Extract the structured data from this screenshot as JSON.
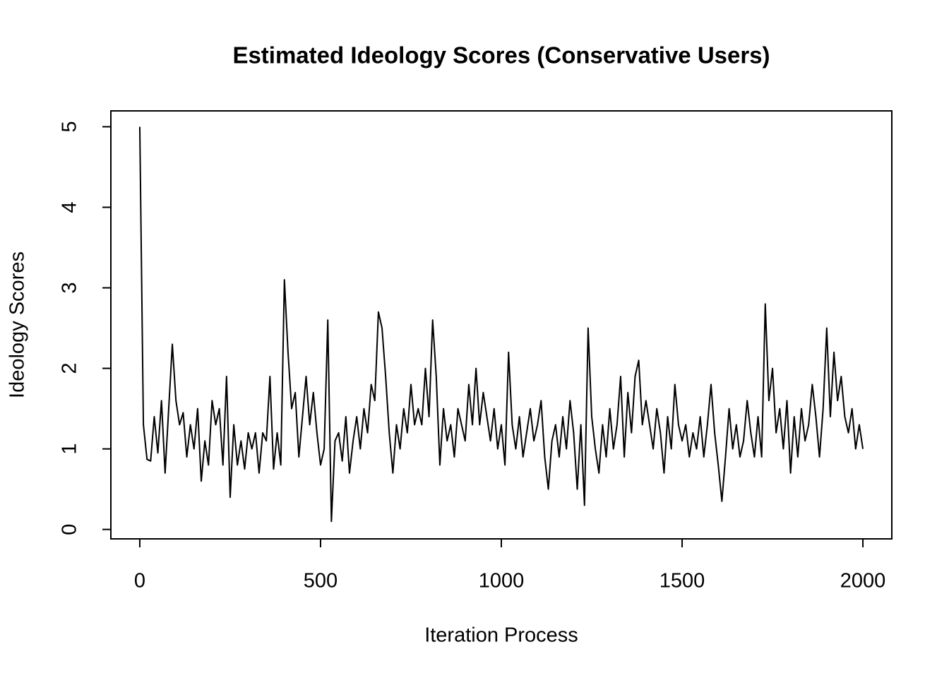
{
  "chart_data": {
    "type": "line",
    "title": "Estimated Ideology Scores (Conservative Users)",
    "x_label": "Iteration Process",
    "y_label": "Ideology Scores",
    "xlim": [
      -80,
      2080
    ],
    "ylim": [
      -0.117,
      5.197
    ],
    "xticks": [
      0,
      500,
      1000,
      1500,
      2000
    ],
    "yticks": [
      0,
      1,
      2,
      3,
      4,
      5
    ],
    "grid": false,
    "series": [
      {
        "color": "#000000",
        "x": [
          0,
          10,
          20,
          30,
          40,
          50,
          60,
          70,
          80,
          90,
          100,
          110,
          120,
          130,
          140,
          150,
          160,
          170,
          180,
          190,
          200,
          210,
          220,
          230,
          240,
          250,
          260,
          270,
          280,
          290,
          300,
          310,
          320,
          330,
          340,
          350,
          360,
          370,
          380,
          390,
          400,
          410,
          420,
          430,
          440,
          450,
          460,
          470,
          480,
          490,
          500,
          510,
          520,
          530,
          540,
          550,
          560,
          570,
          580,
          590,
          600,
          610,
          620,
          630,
          640,
          650,
          660,
          670,
          680,
          690,
          700,
          710,
          720,
          730,
          740,
          750,
          760,
          770,
          780,
          790,
          800,
          810,
          820,
          830,
          840,
          850,
          860,
          870,
          880,
          890,
          900,
          910,
          920,
          930,
          940,
          950,
          960,
          970,
          980,
          990,
          1000,
          1010,
          1020,
          1030,
          1040,
          1050,
          1060,
          1070,
          1080,
          1090,
          1100,
          1110,
          1120,
          1130,
          1140,
          1150,
          1160,
          1170,
          1180,
          1190,
          1200,
          1210,
          1220,
          1230,
          1240,
          1250,
          1260,
          1270,
          1280,
          1290,
          1300,
          1310,
          1320,
          1330,
          1340,
          1350,
          1360,
          1370,
          1380,
          1390,
          1400,
          1410,
          1420,
          1430,
          1440,
          1450,
          1460,
          1470,
          1480,
          1490,
          1500,
          1510,
          1520,
          1530,
          1540,
          1550,
          1560,
          1570,
          1580,
          1590,
          1600,
          1610,
          1620,
          1630,
          1640,
          1650,
          1660,
          1670,
          1680,
          1690,
          1700,
          1710,
          1720,
          1730,
          1740,
          1750,
          1760,
          1770,
          1780,
          1790,
          1800,
          1810,
          1820,
          1830,
          1840,
          1850,
          1860,
          1870,
          1880,
          1890,
          1900,
          1910,
          1920,
          1930,
          1940,
          1950,
          1960,
          1970,
          1980,
          1990,
          2000
        ],
        "values": [
          5.0,
          1.3,
          0.87,
          0.85,
          1.4,
          0.95,
          1.6,
          0.7,
          1.5,
          2.3,
          1.6,
          1.3,
          1.45,
          0.9,
          1.3,
          1.0,
          1.5,
          0.6,
          1.1,
          0.8,
          1.6,
          1.3,
          1.5,
          0.8,
          1.9,
          0.4,
          1.3,
          0.8,
          1.1,
          0.75,
          1.2,
          1.0,
          1.2,
          0.7,
          1.2,
          1.1,
          1.9,
          0.75,
          1.2,
          0.8,
          3.1,
          2.2,
          1.5,
          1.7,
          0.9,
          1.4,
          1.9,
          1.3,
          1.7,
          1.2,
          0.8,
          1.0,
          2.6,
          0.1,
          1.1,
          1.2,
          0.85,
          1.4,
          0.7,
          1.1,
          1.4,
          1.0,
          1.5,
          1.2,
          1.8,
          1.6,
          2.7,
          2.5,
          1.9,
          1.2,
          0.7,
          1.3,
          1.0,
          1.5,
          1.2,
          1.8,
          1.3,
          1.5,
          1.3,
          2.0,
          1.4,
          2.6,
          1.9,
          0.8,
          1.5,
          1.1,
          1.3,
          0.9,
          1.5,
          1.3,
          1.1,
          1.8,
          1.3,
          2.0,
          1.3,
          1.7,
          1.4,
          1.1,
          1.5,
          1.0,
          1.3,
          0.8,
          2.2,
          1.3,
          1.0,
          1.4,
          0.9,
          1.2,
          1.5,
          1.1,
          1.3,
          1.6,
          0.9,
          0.5,
          1.1,
          1.3,
          0.9,
          1.4,
          1.0,
          1.6,
          1.2,
          0.5,
          1.3,
          0.3,
          2.5,
          1.4,
          1.0,
          0.7,
          1.3,
          0.9,
          1.5,
          1.0,
          1.3,
          1.9,
          0.9,
          1.7,
          1.2,
          1.9,
          2.1,
          1.3,
          1.6,
          1.3,
          1.0,
          1.5,
          1.2,
          0.7,
          1.4,
          1.0,
          1.8,
          1.3,
          1.1,
          1.3,
          0.9,
          1.2,
          1.0,
          1.4,
          0.9,
          1.3,
          1.8,
          1.2,
          0.8,
          0.35,
          0.9,
          1.5,
          1.0,
          1.3,
          0.9,
          1.1,
          1.6,
          1.2,
          0.9,
          1.4,
          0.9,
          2.8,
          1.6,
          2.0,
          1.2,
          1.5,
          1.0,
          1.6,
          0.7,
          1.4,
          0.9,
          1.5,
          1.1,
          1.3,
          1.8,
          1.4,
          0.9,
          1.5,
          2.5,
          1.4,
          2.2,
          1.6,
          1.9,
          1.4,
          1.2,
          1.5,
          1.0,
          1.3,
          1.0
        ]
      }
    ]
  }
}
